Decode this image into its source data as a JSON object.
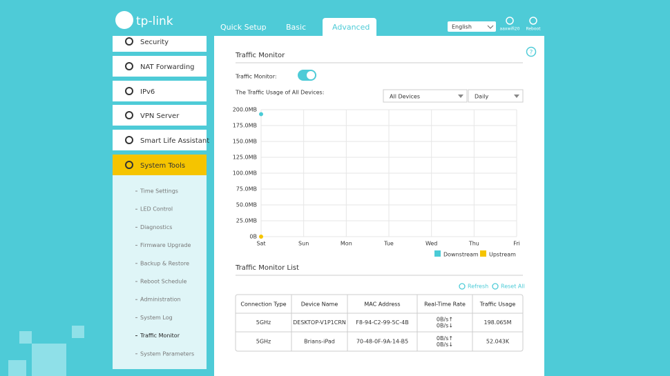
{
  "header": {
    "logo": "tp-link",
    "tabs": [
      {
        "label": "Quick Setup",
        "active": false
      },
      {
        "label": "Basic",
        "active": false
      },
      {
        "label": "Advanced",
        "active": true
      }
    ],
    "language": "English",
    "icons": [
      "aaxwifi20",
      "Reboot"
    ]
  },
  "sidebar": {
    "menu": [
      {
        "label": "Security",
        "active": false
      },
      {
        "label": "NAT Forwarding",
        "active": false
      },
      {
        "label": "IPv6",
        "active": false
      },
      {
        "label": "VPN Server",
        "active": false
      },
      {
        "label": "Smart Life Assistant",
        "active": false
      },
      {
        "label": "System Tools",
        "active": true
      }
    ],
    "submenu": [
      {
        "label": "Time Settings",
        "active": false
      },
      {
        "label": "LED Control",
        "active": false
      },
      {
        "label": "Diagnostics",
        "active": false
      },
      {
        "label": "Firmware Upgrade",
        "active": false
      },
      {
        "label": "Backup & Restore",
        "active": false
      },
      {
        "label": "Reboot Schedule",
        "active": false
      },
      {
        "label": "Administration",
        "active": false
      },
      {
        "label": "System Log",
        "active": false
      },
      {
        "label": "Traffic Monitor",
        "active": true
      },
      {
        "label": "System Parameters",
        "active": false
      }
    ]
  },
  "main": {
    "title": "Traffic Monitor",
    "help_icon": "?",
    "toggle_label": "Traffic Monitor:",
    "toggle_on": true,
    "usage_label": "The Traffic Usage of All Devices:",
    "selects": [
      "All Devices",
      "Daily"
    ],
    "list_title": "Traffic Monitor List",
    "actions": [
      "Refresh",
      "Reset All"
    ],
    "table": {
      "columns": [
        "Connection Type",
        "Device Name",
        "MAC Address",
        "Real-Time Rate",
        "Traffic Usage"
      ],
      "rows": [
        [
          "5GHz",
          "DESKTOP-V1P1CRN",
          "F8-94-C2-99-5C-4B",
          [
            "0B/s↑",
            "0B/s↓"
          ],
          "198.065M"
        ],
        [
          "5GHz",
          "Brians-iPad",
          "70-48-0F-9A-14-B5",
          [
            "0B/s↑",
            "0B/s↓"
          ],
          "52.043K"
        ]
      ]
    }
  },
  "chart_data": {
    "type": "line",
    "categories": [
      "Sat",
      "Sun",
      "Mon",
      "Tue",
      "Wed",
      "Thu",
      "Fri"
    ],
    "series": [
      {
        "name": "Downstream",
        "color": "#4acbd6",
        "values": [
          193,
          null,
          null,
          null,
          null,
          null,
          null
        ]
      },
      {
        "name": "Upstream",
        "color": "#f5c400",
        "values": [
          0.05,
          null,
          null,
          null,
          null,
          null,
          null
        ]
      }
    ],
    "ylim": [
      0,
      200
    ],
    "yticks": [
      {
        "value": 0,
        "label": "0B"
      },
      {
        "value": 25,
        "label": "25.0MB"
      },
      {
        "value": 50,
        "label": "50.0MB"
      },
      {
        "value": 75,
        "label": "75.0MB"
      },
      {
        "value": 100,
        "label": "100.0MB"
      },
      {
        "value": 125,
        "label": "125.0MB"
      },
      {
        "value": 150,
        "label": "150.0MB"
      },
      {
        "value": 175,
        "label": "175.0MB"
      },
      {
        "value": 200,
        "label": "200.0MB"
      }
    ],
    "grid": true,
    "legend": "bottom-right"
  }
}
